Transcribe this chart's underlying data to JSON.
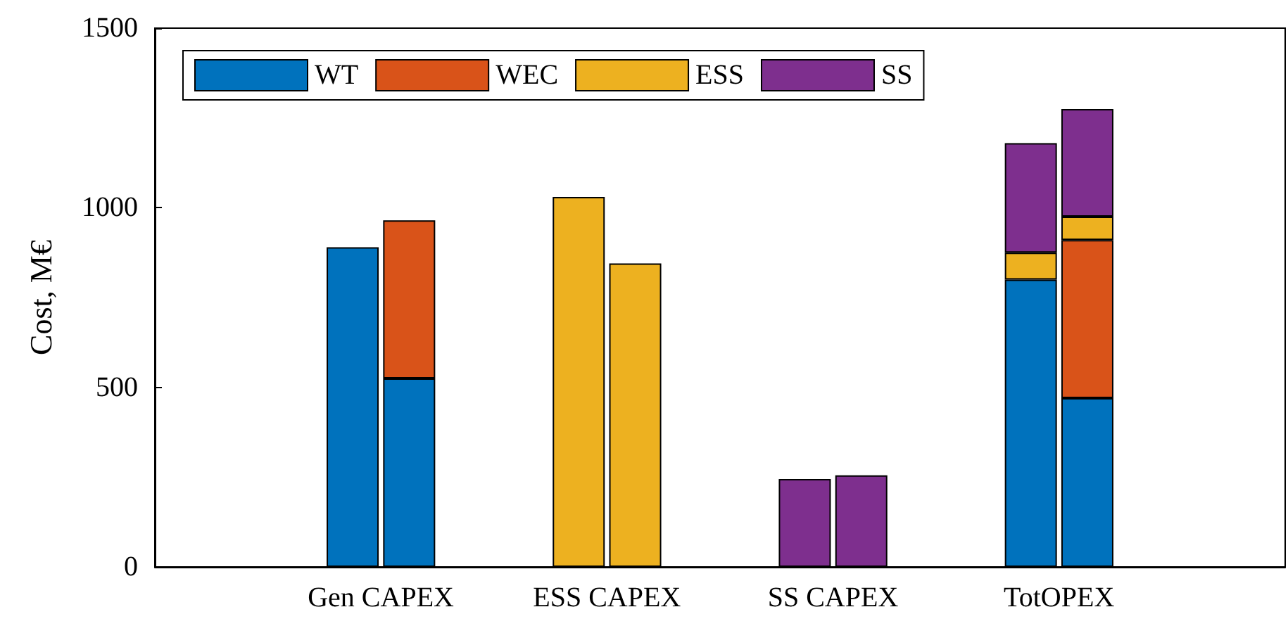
{
  "chart_data": {
    "type": "bar",
    "stacked": true,
    "ylabel": "Cost, M€",
    "categories": [
      null,
      null,
      null,
      "Gen CAPEX",
      null,
      null,
      null,
      "ESS CAPEX",
      null,
      null,
      null,
      "SS CAPEX",
      null,
      null,
      null,
      "TotOPEX",
      null,
      null,
      null,
      null
    ],
    "series": [
      {
        "name": "WT",
        "color": "#0072bd",
        "values": [
          null,
          null,
          null,
          890,
          525,
          null,
          null,
          null,
          null,
          null,
          null,
          null,
          null,
          null,
          null,
          800,
          470,
          null,
          null,
          null
        ]
      },
      {
        "name": "WEC",
        "color": "#d95319",
        "values": [
          null,
          null,
          null,
          null,
          440,
          null,
          null,
          null,
          null,
          null,
          null,
          null,
          null,
          null,
          null,
          null,
          440,
          null,
          null,
          null
        ]
      },
      {
        "name": "ESS",
        "color": "#edb120",
        "values": [
          null,
          null,
          null,
          null,
          null,
          null,
          null,
          1030,
          845,
          null,
          null,
          null,
          null,
          null,
          null,
          75,
          65,
          null,
          null,
          null
        ]
      },
      {
        "name": "SS",
        "color": "#7e2f8e",
        "values": [
          null,
          null,
          null,
          null,
          null,
          null,
          null,
          null,
          null,
          null,
          null,
          245,
          255,
          null,
          null,
          305,
          300,
          null,
          null,
          null
        ]
      }
    ],
    "ylim": [
      0,
      1500
    ],
    "yticks": [
      0,
      500,
      1000,
      1500
    ],
    "grid": false,
    "legend": "top left"
  }
}
